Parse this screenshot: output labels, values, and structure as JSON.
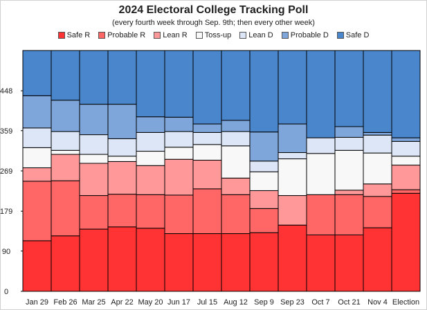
{
  "chart_data": {
    "type": "bar",
    "stacked": true,
    "title": "2024 Electoral College Tracking Poll",
    "subtitle": "(every fourth week through Sep. 9th; then every other week)",
    "categories": [
      "Jan 29",
      "Feb 26",
      "Mar 25",
      "Apr 22",
      "May 20",
      "Jun 17",
      "Jul 15",
      "Aug 12",
      "Sep 9",
      "Sep 23",
      "Oct 7",
      "Oct 21",
      "Nov 4",
      "Election"
    ],
    "y_ticks": [
      "0",
      "90",
      "179",
      "269",
      "359",
      "448"
    ],
    "ylim": [
      0,
      538
    ],
    "legend_position": "top",
    "series": [
      {
        "name": "Safe R",
        "color": "#ff3333",
        "values": [
          113,
          124,
          139,
          144,
          141,
          129,
          129,
          129,
          131,
          148,
          126,
          126,
          142,
          219
        ]
      },
      {
        "name": "Probable R",
        "color": "#ff6666",
        "values": [
          133,
          123,
          75,
          73,
          75,
          86,
          100,
          87,
          54,
          0,
          90,
          90,
          70,
          8
        ]
      },
      {
        "name": "Lean R",
        "color": "#ff9999",
        "values": [
          30,
          59,
          72,
          73,
          65,
          80,
          64,
          37,
          40,
          66,
          0,
          10,
          28,
          55
        ]
      },
      {
        "name": "Toss-up",
        "color": "#f8f8f8",
        "values": [
          45,
          9,
          20,
          12,
          32,
          27,
          35,
          72,
          42,
          82,
          92,
          89,
          69,
          20
        ]
      },
      {
        "name": "Lean D",
        "color": "#dde6f6",
        "values": [
          44,
          42,
          44,
          39,
          42,
          35,
          27,
          32,
          24,
          14,
          35,
          29,
          40,
          33
        ]
      },
      {
        "name": "Probable D",
        "color": "#7fa6da",
        "values": [
          72,
          70,
          68,
          77,
          35,
          32,
          19,
          25,
          65,
          64,
          0,
          24,
          6,
          8
        ]
      },
      {
        "name": "Safe D",
        "color": "#4a86cc",
        "values": [
          101,
          111,
          120,
          120,
          148,
          149,
          164,
          156,
          182,
          164,
          195,
          170,
          183,
          195
        ]
      }
    ]
  }
}
